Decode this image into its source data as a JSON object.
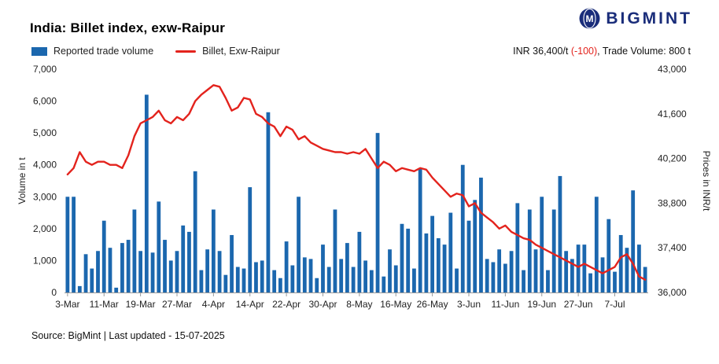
{
  "header": {
    "title": "India: Billet index, exw-Raipur",
    "brand": "BIGMINT"
  },
  "legend": {
    "volume": {
      "label": "Reported trade volume"
    },
    "price": {
      "label": "Billet, Exw-Raipur"
    }
  },
  "price_summary": {
    "prefix": "INR 36,400/t ",
    "change": "(-100)",
    "suffix": ", Trade Volume: 800 t"
  },
  "footer": {
    "source": "Source: BigMint | Last updated - 15-07-2025"
  },
  "colors": {
    "bar": "#1b67ae",
    "line": "#e3231d",
    "brand": "#1a2d7a",
    "negative": "#e3231d",
    "axis": "#9a9a9a",
    "tick_text": "#222222"
  },
  "chart_data": {
    "type": "bar",
    "title": "India: Billet index, exw-Raipur",
    "grid": false,
    "legend_position": "top-left",
    "ylabel_left": "Volume in t",
    "ylabel_right": "Prices in INR/t",
    "ylim_left": [
      0,
      7000
    ],
    "yticks_left": [
      0,
      1000,
      2000,
      3000,
      4000,
      5000,
      6000,
      7000
    ],
    "ylim_right": [
      36000,
      43000
    ],
    "yticks_right": [
      36000,
      37400,
      38800,
      40200,
      41600,
      43000
    ],
    "xtick_every": 6,
    "bar_color": "#1b67ae",
    "line_color": "#e3231d",
    "categories": [
      "3-Mar",
      "4-Mar",
      "5-Mar",
      "6-Mar",
      "7-Mar",
      "10-Mar",
      "11-Mar",
      "12-Mar",
      "13-Mar",
      "14-Mar",
      "17-Mar",
      "18-Mar",
      "19-Mar",
      "20-Mar",
      "21-Mar",
      "24-Mar",
      "25-Mar",
      "26-Mar",
      "27-Mar",
      "28-Mar",
      "31-Mar",
      "1-Apr",
      "2-Apr",
      "3-Apr",
      "4-Apr",
      "7-Apr",
      "8-Apr",
      "9-Apr",
      "10-Apr",
      "11-Apr",
      "14-Apr",
      "15-Apr",
      "16-Apr",
      "17-Apr",
      "18-Apr",
      "21-Apr",
      "22-Apr",
      "23-Apr",
      "24-Apr",
      "25-Apr",
      "28-Apr",
      "29-Apr",
      "30-Apr",
      "1-May",
      "2-May",
      "5-May",
      "6-May",
      "7-May",
      "8-May",
      "9-May",
      "12-May",
      "13-May",
      "14-May",
      "15-May",
      "16-May",
      "19-May",
      "20-May",
      "21-May",
      "22-May",
      "23-May",
      "26-May",
      "27-May",
      "28-May",
      "29-May",
      "30-May",
      "2-Jun",
      "3-Jun",
      "4-Jun",
      "5-Jun",
      "6-Jun",
      "9-Jun",
      "10-Jun",
      "11-Jun",
      "12-Jun",
      "13-Jun",
      "16-Jun",
      "17-Jun",
      "18-Jun",
      "19-Jun",
      "20-Jun",
      "23-Jun",
      "24-Jun",
      "25-Jun",
      "26-Jun",
      "27-Jun",
      "30-Jun",
      "1-Jul",
      "2-Jul",
      "3-Jul",
      "4-Jul",
      "7-Jul",
      "8-Jul",
      "9-Jul",
      "10-Jul",
      "11-Jul",
      "14-Jul"
    ],
    "series": [
      {
        "name": "Reported trade volume",
        "type": "bar",
        "axis": "left",
        "values": [
          3000,
          3000,
          200,
          1200,
          750,
          1300,
          2250,
          1400,
          150,
          1550,
          1650,
          2600,
          1300,
          6200,
          1250,
          2850,
          1650,
          1000,
          1300,
          2100,
          1900,
          3800,
          700,
          1350,
          2600,
          1300,
          550,
          1800,
          800,
          750,
          3300,
          950,
          1000,
          5650,
          700,
          450,
          1600,
          850,
          3000,
          1100,
          1050,
          450,
          1500,
          800,
          2600,
          1050,
          1550,
          800,
          1900,
          1000,
          700,
          5000,
          500,
          1350,
          850,
          2150,
          2000,
          750,
          3900,
          1850,
          2400,
          1700,
          1500,
          2500,
          750,
          4000,
          2250,
          2900,
          3600,
          1050,
          950,
          1350,
          900,
          1300,
          2800,
          700,
          2600,
          1350,
          3000,
          700,
          2600,
          3650,
          1300,
          1050,
          1500,
          1500,
          600,
          3000,
          1100,
          2300,
          650,
          1800,
          1400,
          3200,
          1500,
          800
        ]
      },
      {
        "name": "Billet, Exw-Raipur",
        "type": "line",
        "axis": "right",
        "values": [
          39700,
          39900,
          40400,
          40100,
          40000,
          40100,
          40100,
          40000,
          40000,
          39900,
          40300,
          40900,
          41300,
          41400,
          41500,
          41700,
          41400,
          41300,
          41500,
          41400,
          41600,
          42000,
          42200,
          42350,
          42500,
          42450,
          42100,
          41700,
          41800,
          42100,
          42050,
          41600,
          41500,
          41300,
          41200,
          40900,
          41200,
          41100,
          40800,
          40900,
          40700,
          40600,
          40500,
          40450,
          40400,
          40400,
          40350,
          40400,
          40350,
          40500,
          40200,
          39900,
          40100,
          40000,
          39800,
          39900,
          39850,
          39800,
          39900,
          39850,
          39600,
          39400,
          39200,
          39000,
          39100,
          39050,
          38700,
          38800,
          38500,
          38350,
          38200,
          38000,
          38100,
          37900,
          37800,
          37700,
          37650,
          37500,
          37400,
          37300,
          37200,
          37100,
          37000,
          36900,
          36800,
          36900,
          36800,
          36700,
          36600,
          36700,
          36800,
          37100,
          37200,
          36900,
          36500,
          36400
        ]
      }
    ]
  }
}
